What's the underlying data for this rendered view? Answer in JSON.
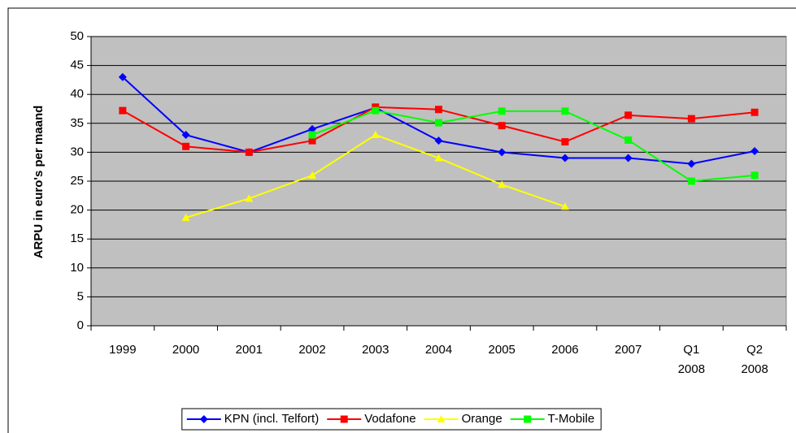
{
  "chart_data": {
    "type": "line",
    "y_label": "ARPU in euro's per maand",
    "categories": [
      "1999",
      "2000",
      "2001",
      "2002",
      "2003",
      "2004",
      "2005",
      "2006",
      "2007",
      "Q1 2008",
      "Q2 2008"
    ],
    "series": [
      {
        "name": "KPN (incl. Telfort)",
        "color": "#0000ff",
        "marker": "diamond",
        "values": [
          43,
          33,
          30,
          34,
          37.7,
          32,
          30,
          29,
          29,
          28,
          30.2
        ]
      },
      {
        "name": "Vodafone",
        "color": "#ff0000",
        "marker": "square",
        "values": [
          37.2,
          31,
          30,
          32,
          37.8,
          37.4,
          34.6,
          31.8,
          36.4,
          35.8,
          36.9
        ]
      },
      {
        "name": "Orange",
        "color": "#ffff00",
        "marker": "triangle",
        "values": [
          null,
          18.7,
          22,
          26,
          33,
          29,
          24.4,
          20.6,
          null,
          null,
          null
        ]
      },
      {
        "name": "T-Mobile",
        "color": "#00ff00",
        "marker": "square",
        "values": [
          null,
          null,
          null,
          33,
          37.2,
          35.1,
          37.1,
          37.1,
          32.1,
          25,
          26
        ]
      }
    ],
    "ylim": [
      0,
      50
    ],
    "yticks": [
      0,
      5,
      10,
      15,
      20,
      25,
      30,
      35,
      40,
      45,
      50
    ],
    "grid": true,
    "legend": "bottom"
  }
}
